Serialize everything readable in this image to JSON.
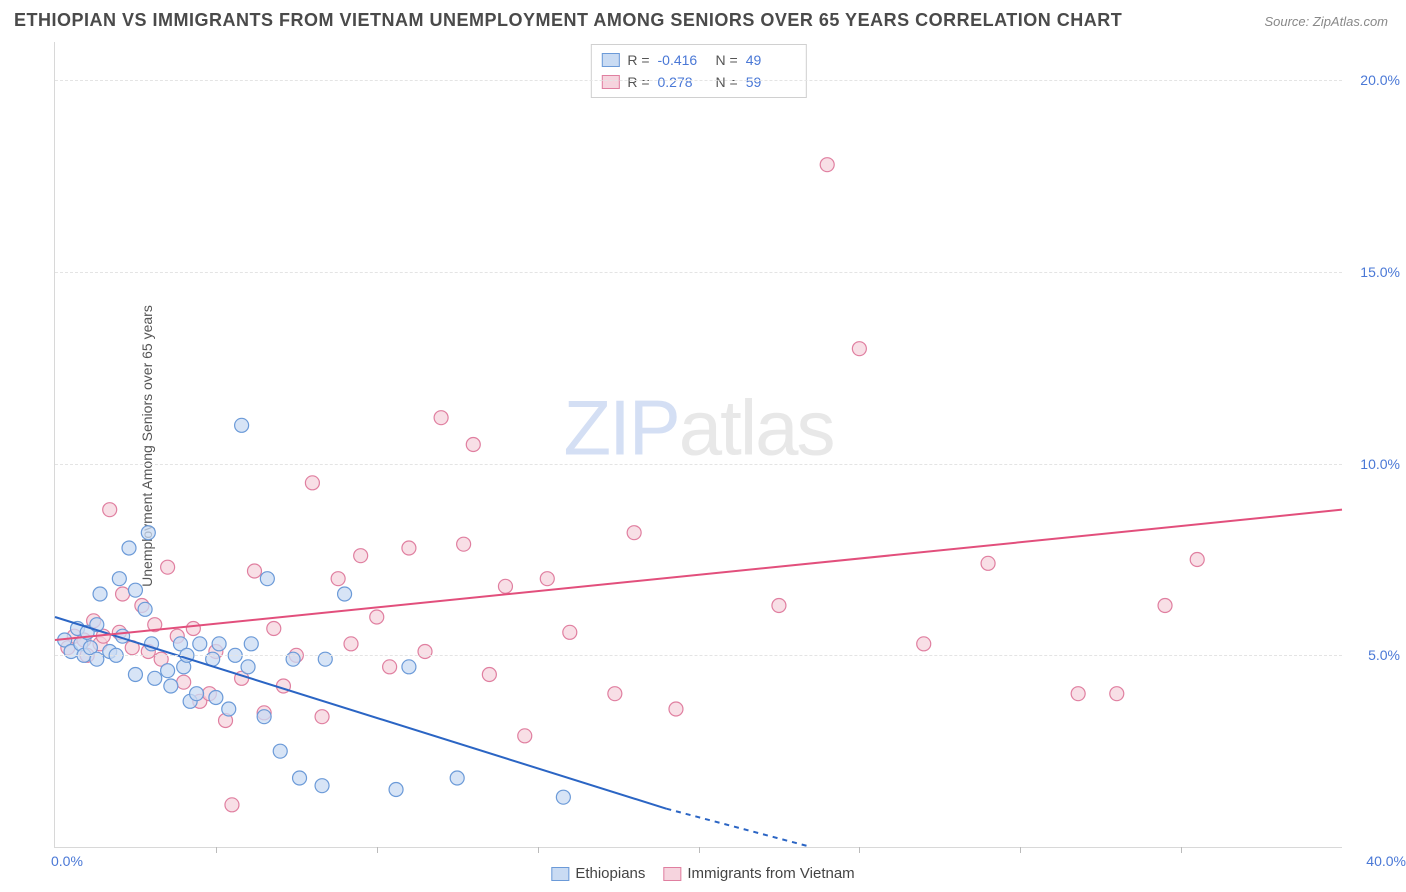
{
  "title": "ETHIOPIAN VS IMMIGRANTS FROM VIETNAM UNEMPLOYMENT AMONG SENIORS OVER 65 YEARS CORRELATION CHART",
  "source": "Source: ZipAtlas.com",
  "ylabel": "Unemployment Among Seniors over 65 years",
  "watermark_a": "ZIP",
  "watermark_b": "atlas",
  "chart": {
    "type": "scatter",
    "background_color": "#ffffff",
    "grid_color": "#e4e4e4",
    "axis_color": "#d8d8d8",
    "tick_label_color": "#4a78d6",
    "xlim": [
      0,
      40
    ],
    "ylim": [
      0,
      21
    ],
    "ytick_step": 5,
    "ytick_labels": [
      "5.0%",
      "10.0%",
      "15.0%",
      "20.0%"
    ],
    "xtick_positions": [
      5,
      10,
      15,
      20,
      25,
      30,
      35
    ],
    "xlabel_0": "0.0%",
    "xlabel_max": "40.0%",
    "marker_radius": 7,
    "marker_stroke_width": 1.2,
    "trend_line_width": 2
  },
  "series": [
    {
      "name": "Ethiopians",
      "color_fill": "#c9dbf3",
      "color_stroke": "#6b9ad8",
      "trend_color": "#2b65c4",
      "r_label": "R =",
      "r_value": "-0.416",
      "n_label": "N =",
      "n_value": "49",
      "trend": {
        "x1": 0,
        "y1": 6.0,
        "x2_solid": 19,
        "y2_solid": 1.0,
        "x2_dash": 23.5,
        "y2_dash": 0.0
      },
      "points": [
        [
          0.3,
          5.4
        ],
        [
          0.5,
          5.1
        ],
        [
          0.8,
          5.3
        ],
        [
          0.7,
          5.7
        ],
        [
          0.9,
          5.0
        ],
        [
          1.0,
          5.6
        ],
        [
          1.1,
          5.2
        ],
        [
          1.3,
          4.9
        ],
        [
          1.3,
          5.8
        ],
        [
          1.4,
          6.6
        ],
        [
          1.7,
          5.1
        ],
        [
          1.9,
          5.0
        ],
        [
          2.0,
          7.0
        ],
        [
          2.1,
          5.5
        ],
        [
          2.3,
          7.8
        ],
        [
          2.5,
          6.7
        ],
        [
          2.5,
          4.5
        ],
        [
          2.8,
          6.2
        ],
        [
          2.9,
          8.2
        ],
        [
          3.0,
          5.3
        ],
        [
          3.1,
          4.4
        ],
        [
          3.5,
          4.6
        ],
        [
          3.6,
          4.2
        ],
        [
          3.9,
          5.3
        ],
        [
          4.0,
          4.7
        ],
        [
          4.1,
          5.0
        ],
        [
          4.2,
          3.8
        ],
        [
          4.4,
          4.0
        ],
        [
          4.5,
          5.3
        ],
        [
          4.9,
          4.9
        ],
        [
          5.0,
          3.9
        ],
        [
          5.1,
          5.3
        ],
        [
          5.4,
          3.6
        ],
        [
          5.6,
          5.0
        ],
        [
          5.8,
          11.0
        ],
        [
          6.0,
          4.7
        ],
        [
          6.1,
          5.3
        ],
        [
          6.5,
          3.4
        ],
        [
          6.6,
          7.0
        ],
        [
          7.0,
          2.5
        ],
        [
          7.4,
          4.9
        ],
        [
          7.6,
          1.8
        ],
        [
          8.3,
          1.6
        ],
        [
          8.4,
          4.9
        ],
        [
          9.0,
          6.6
        ],
        [
          10.6,
          1.5
        ],
        [
          11.0,
          4.7
        ],
        [
          12.5,
          1.8
        ],
        [
          15.8,
          1.3
        ]
      ]
    },
    {
      "name": "Immigrants from Vietnam",
      "color_fill": "#f6d4de",
      "color_stroke": "#e07fa0",
      "trend_color": "#e24f7c",
      "r_label": "R =",
      "r_value": "0.278",
      "n_label": "N =",
      "n_value": "59",
      "trend": {
        "x1": 0,
        "y1": 5.4,
        "x2_solid": 40,
        "y2_solid": 8.8,
        "x2_dash": 40,
        "y2_dash": 8.8
      },
      "points": [
        [
          0.4,
          5.2
        ],
        [
          0.6,
          5.5
        ],
        [
          0.9,
          5.4
        ],
        [
          1.0,
          5.0
        ],
        [
          1.2,
          5.9
        ],
        [
          1.4,
          5.3
        ],
        [
          1.5,
          5.5
        ],
        [
          1.7,
          8.8
        ],
        [
          2.0,
          5.6
        ],
        [
          2.1,
          6.6
        ],
        [
          2.4,
          5.2
        ],
        [
          2.7,
          6.3
        ],
        [
          2.9,
          5.1
        ],
        [
          3.1,
          5.8
        ],
        [
          3.3,
          4.9
        ],
        [
          3.5,
          7.3
        ],
        [
          3.8,
          5.5
        ],
        [
          4.0,
          4.3
        ],
        [
          4.3,
          5.7
        ],
        [
          4.5,
          3.8
        ],
        [
          4.8,
          4.0
        ],
        [
          5.0,
          5.1
        ],
        [
          5.3,
          3.3
        ],
        [
          5.5,
          1.1
        ],
        [
          5.8,
          4.4
        ],
        [
          6.2,
          7.2
        ],
        [
          6.5,
          3.5
        ],
        [
          6.8,
          5.7
        ],
        [
          7.1,
          4.2
        ],
        [
          7.5,
          5.0
        ],
        [
          8.0,
          9.5
        ],
        [
          8.3,
          3.4
        ],
        [
          8.8,
          7.0
        ],
        [
          9.2,
          5.3
        ],
        [
          9.5,
          7.6
        ],
        [
          10.0,
          6.0
        ],
        [
          10.4,
          4.7
        ],
        [
          11.0,
          7.8
        ],
        [
          11.5,
          5.1
        ],
        [
          12.0,
          11.2
        ],
        [
          12.7,
          7.9
        ],
        [
          13.0,
          10.5
        ],
        [
          13.5,
          4.5
        ],
        [
          14.0,
          6.8
        ],
        [
          14.6,
          2.9
        ],
        [
          15.3,
          7.0
        ],
        [
          16.0,
          5.6
        ],
        [
          17.4,
          4.0
        ],
        [
          18.0,
          8.2
        ],
        [
          19.3,
          3.6
        ],
        [
          22.5,
          6.3
        ],
        [
          24.0,
          17.8
        ],
        [
          25.0,
          13.0
        ],
        [
          27.0,
          5.3
        ],
        [
          29.0,
          7.4
        ],
        [
          31.8,
          4.0
        ],
        [
          33.0,
          4.0
        ],
        [
          34.5,
          6.3
        ],
        [
          35.5,
          7.5
        ]
      ]
    }
  ],
  "legend_bottom": [
    {
      "label": "Ethiopians"
    },
    {
      "label": "Immigrants from Vietnam"
    }
  ]
}
